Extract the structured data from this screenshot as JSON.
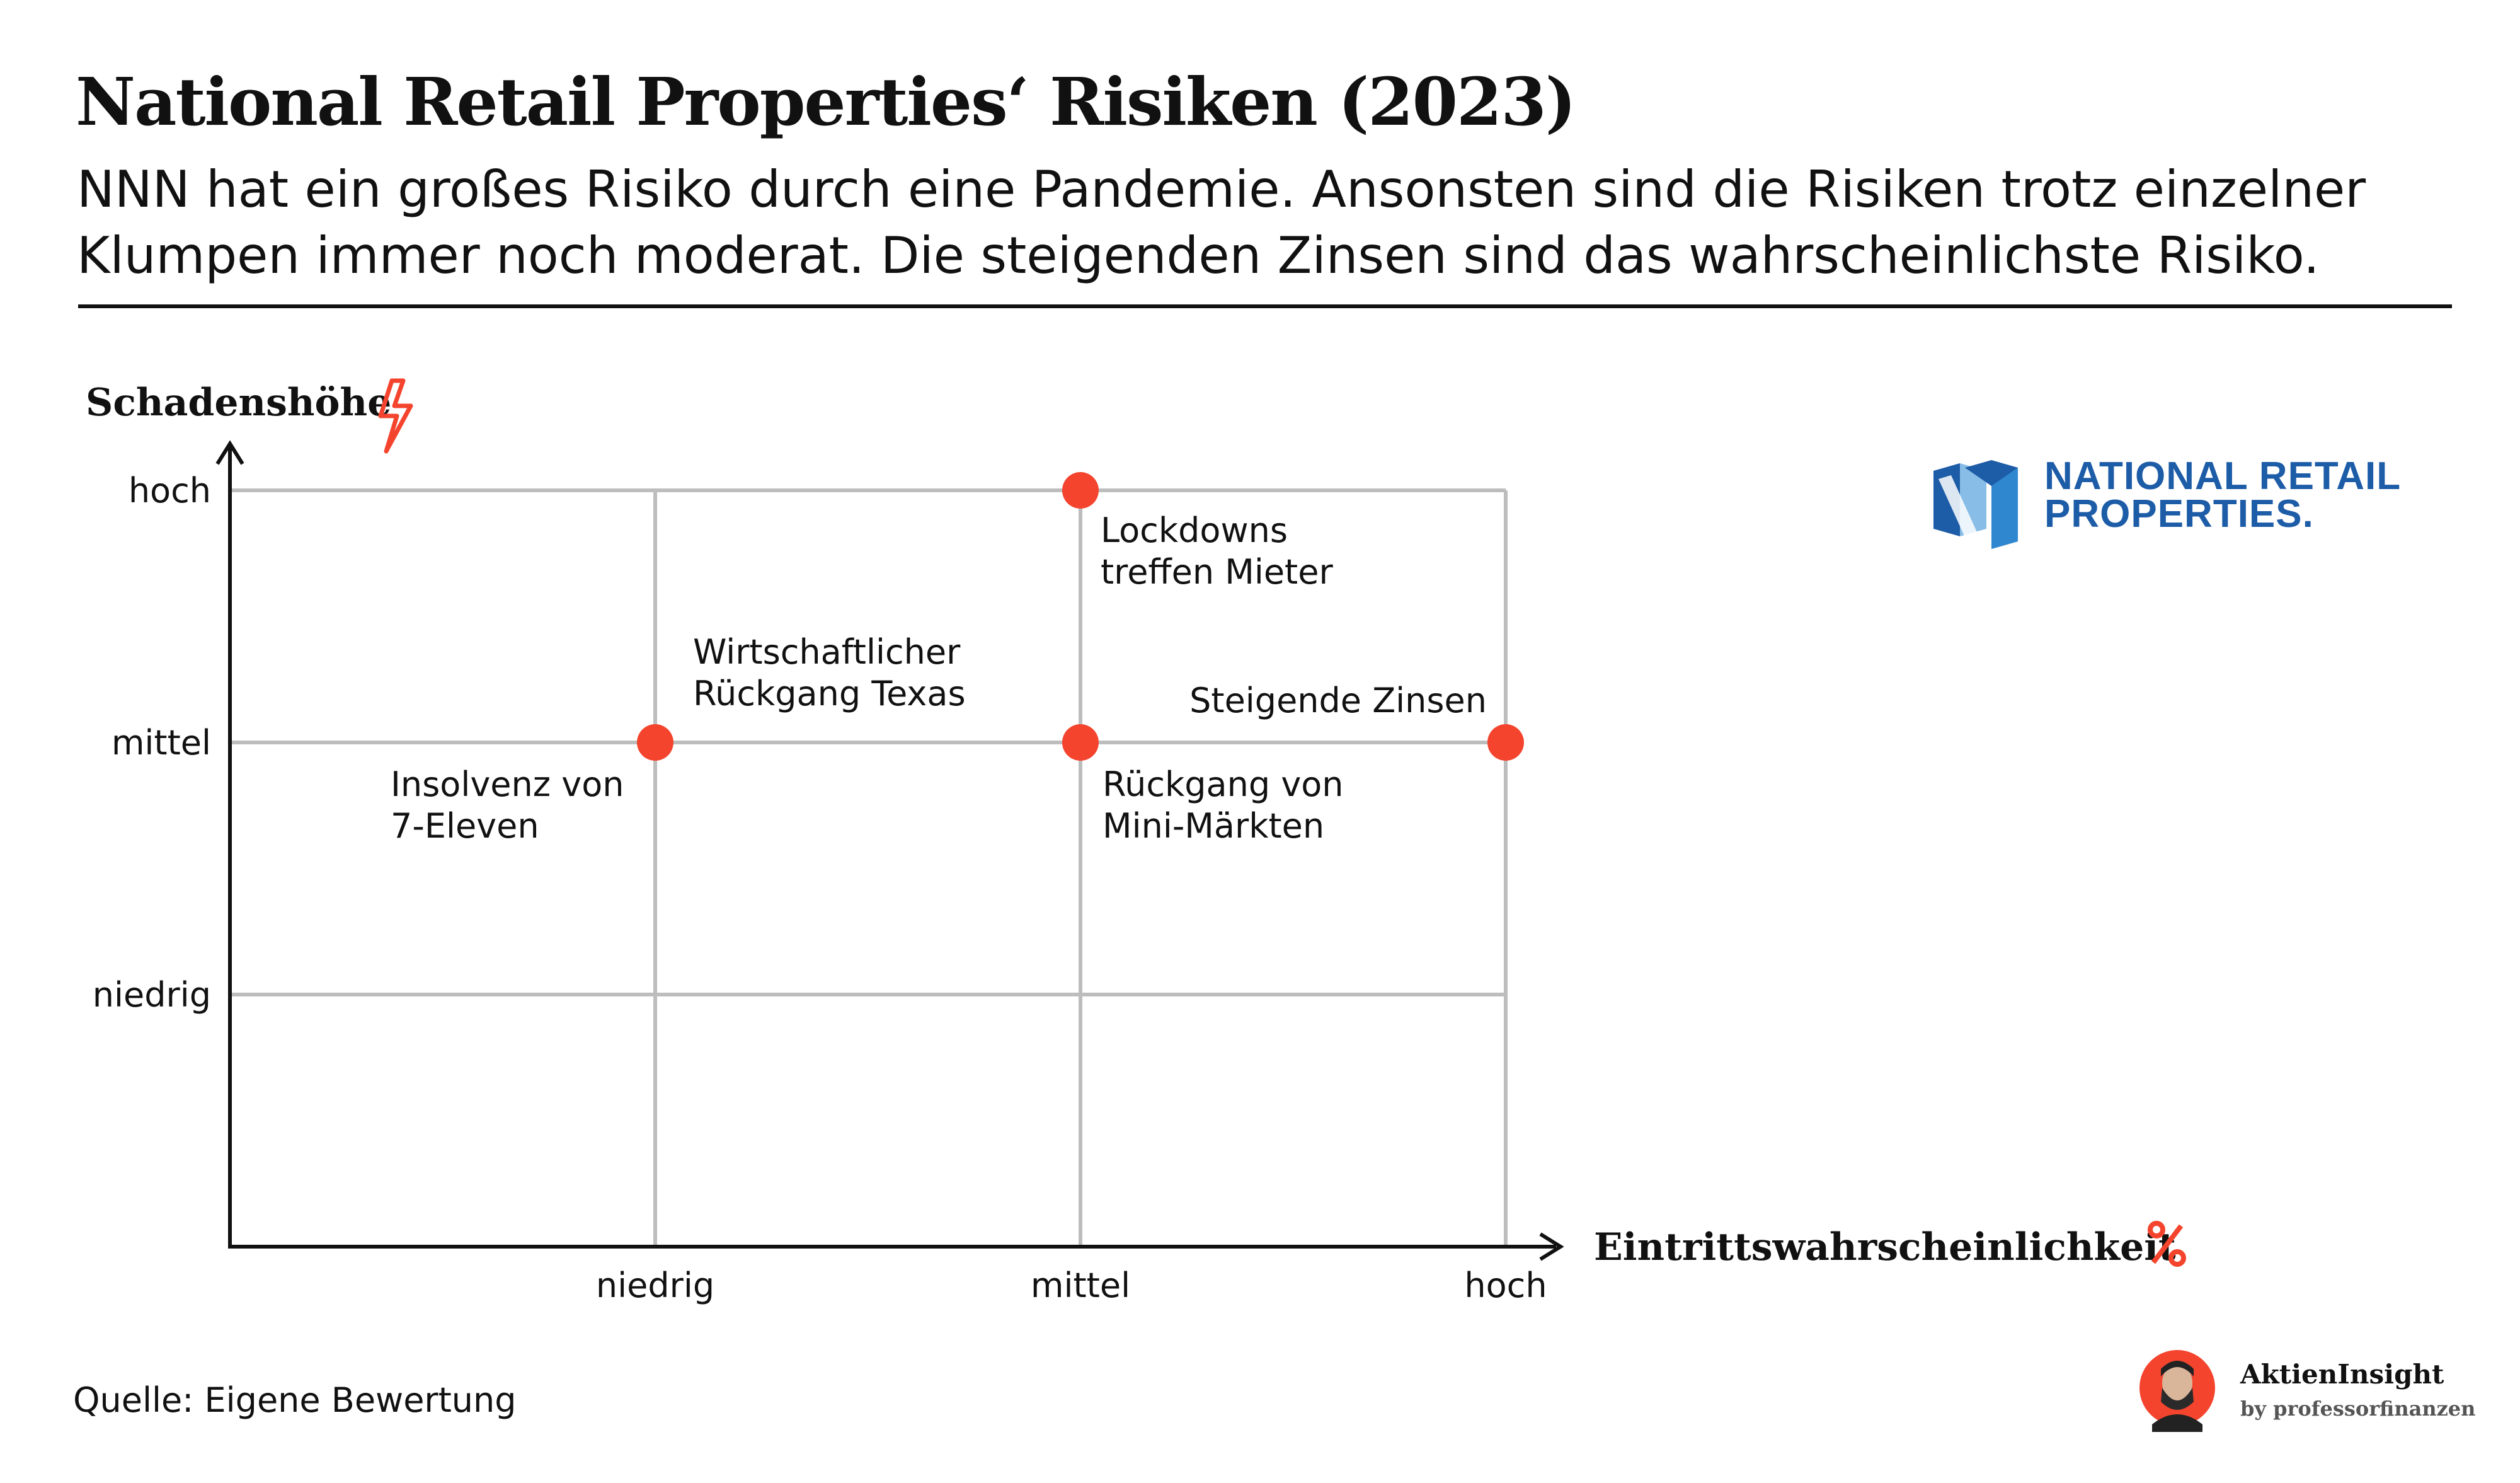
{
  "header": {
    "title": "National Retail Properties‘ Risiken (2023)",
    "subtitle_line1": "NNN hat ein großes Risiko durch eine Pandemie. Ansonsten sind die Risiken trotz einzelner",
    "subtitle_line2": "Klumpen immer noch moderat. Die steigenden Zinsen sind das wahrscheinlichste Risiko."
  },
  "logo": {
    "line1": "NATIONAL RETAIL",
    "line2": "PROPERTIES.",
    "color": "#1d5ca7",
    "icon": "nnn-logo-icon"
  },
  "chart_data": {
    "type": "scatter",
    "title": "National Retail Properties‘ Risiken (2023)",
    "xlabel": "Eintrittswahrscheinlichkeit",
    "ylabel": "Schadenshöhe",
    "x_icon": "percent-icon",
    "y_icon": "lightning-icon",
    "x_ticks": [
      "niedrig",
      "mittel",
      "hoch"
    ],
    "y_ticks": [
      "niedrig",
      "mittel",
      "hoch"
    ],
    "xlim": [
      0,
      3
    ],
    "ylim": [
      0,
      3
    ],
    "grid": true,
    "point_color": "#f4442e",
    "points": [
      {
        "x": 1,
        "y": 2,
        "label": [
          "Insolvenz von",
          "7-Eleven"
        ]
      },
      {
        "x": 1,
        "y": 2,
        "label": [
          "Wirtschaftlicher",
          "Rückgang Texas"
        ]
      },
      {
        "x": 2,
        "y": 3,
        "label": [
          "Lockdowns",
          "treffen Mieter"
        ]
      },
      {
        "x": 2,
        "y": 2,
        "label": [
          "Rückgang von",
          "Mini-Märkten"
        ]
      },
      {
        "x": 3,
        "y": 2,
        "label": [
          "Steigende Zinsen"
        ]
      }
    ]
  },
  "footer": {
    "source": "Quelle: Eigene Bewertung",
    "brand_name": "AktienInsight",
    "brand_by": "by professorfinanzen",
    "accent": "#f4442e"
  }
}
